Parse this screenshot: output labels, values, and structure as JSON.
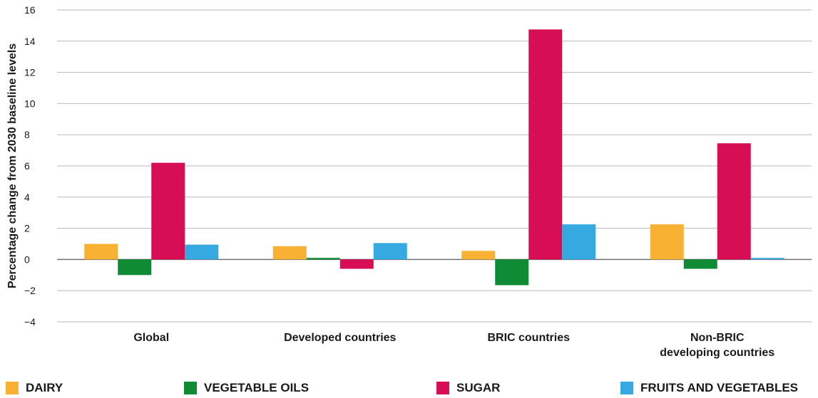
{
  "chart_data": {
    "type": "bar",
    "ylabel": "Percentage change from 2030 baseline levels",
    "ylim": [
      -4,
      16
    ],
    "yticks": [
      "16",
      "14",
      "12",
      "10",
      "8",
      "6",
      "4",
      "2",
      "0",
      "−2",
      "−4"
    ],
    "ytick_values": [
      16,
      14,
      12,
      10,
      8,
      6,
      4,
      2,
      0,
      -2,
      -4
    ],
    "categories": [
      [
        "Global"
      ],
      [
        "Developed countries"
      ],
      [
        "BRIC countries"
      ],
      [
        "Non-BRIC",
        "developing countries"
      ]
    ],
    "series": [
      {
        "name": "DAIRY",
        "color": "#f8b133",
        "values": [
          1.0,
          0.85,
          0.55,
          2.25
        ]
      },
      {
        "name": "VEGETABLE OILS",
        "color": "#0f8a35",
        "values": [
          -1.0,
          0.1,
          -1.65,
          -0.6
        ]
      },
      {
        "name": "SUGAR",
        "color": "#d70e54",
        "values": [
          6.2,
          -0.6,
          14.75,
          7.45
        ]
      },
      {
        "name": "FRUITS AND VEGETABLES",
        "color": "#36a9e0",
        "values": [
          0.95,
          1.05,
          2.25,
          0.1
        ]
      }
    ],
    "grid": true,
    "legend_position": "bottom"
  }
}
